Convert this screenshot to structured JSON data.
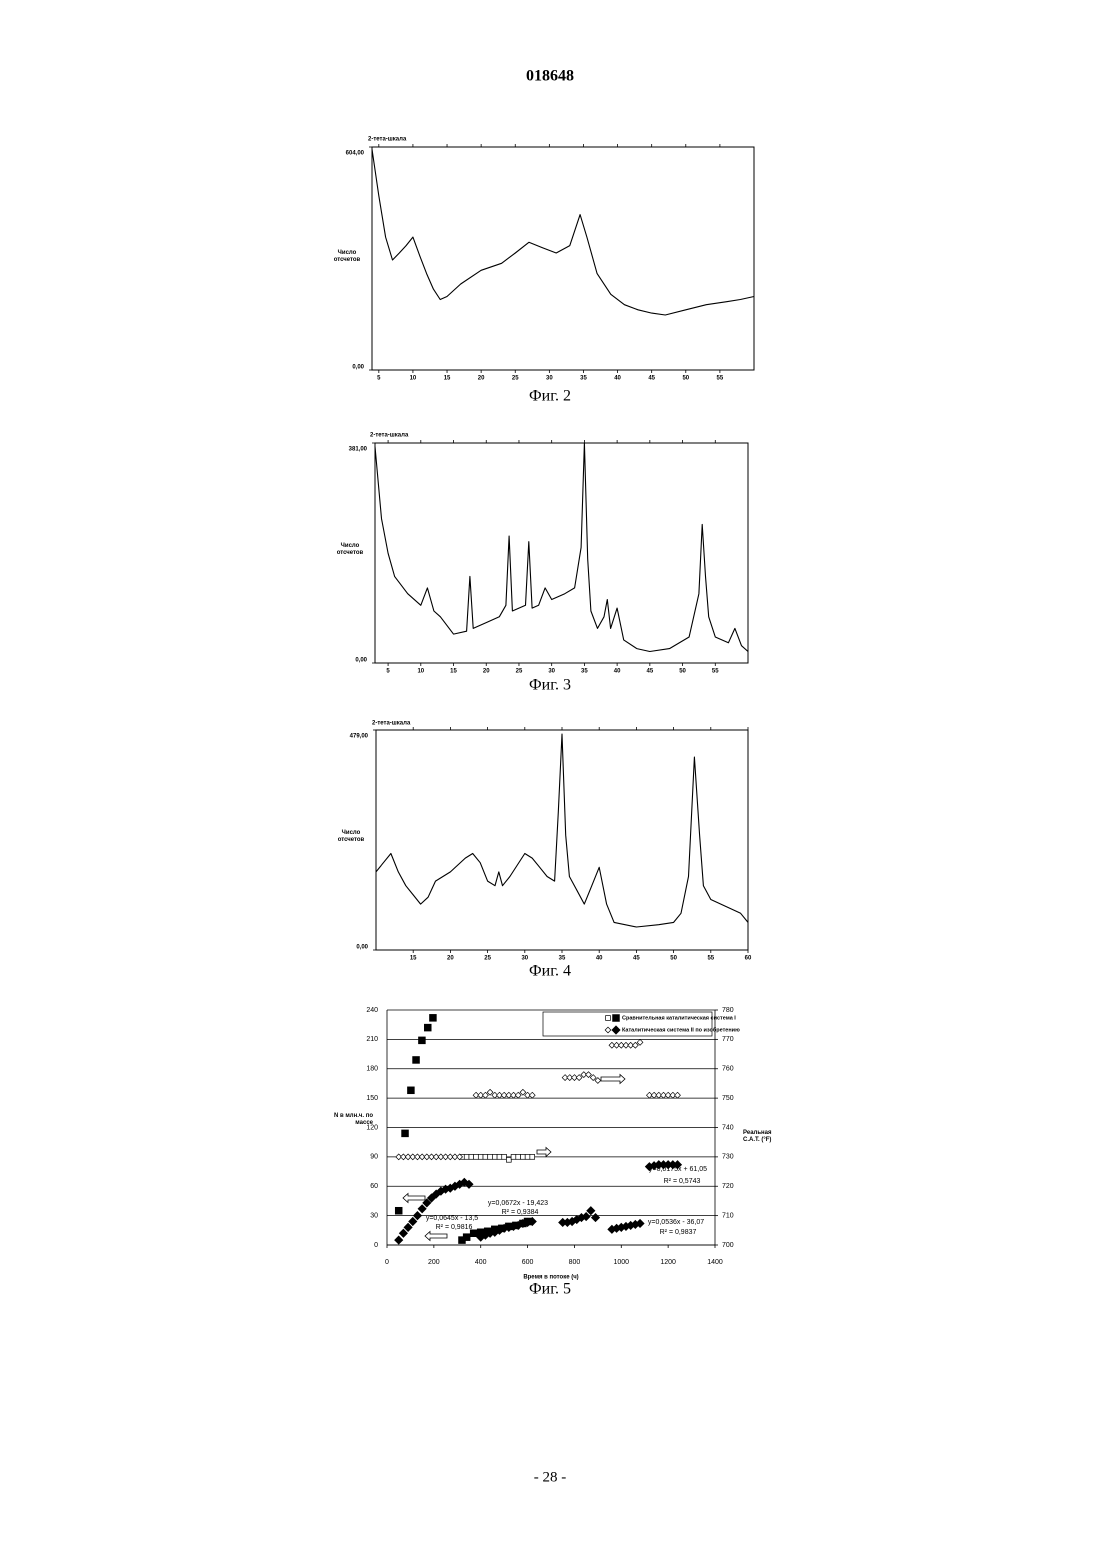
{
  "header": "018648",
  "page_number": "- 28 -",
  "chart_data": [
    {
      "type": "line",
      "title": "2-тета-шкала",
      "y_label": "Число отсчетов",
      "caption": "Фиг. 2",
      "color": "#000000",
      "xlim": [
        4,
        60
      ],
      "xticks": [
        5,
        10,
        15,
        20,
        25,
        30,
        35,
        40,
        45,
        50,
        55
      ],
      "ylim": [
        0,
        604
      ],
      "yticks": [
        {
          "value": 0,
          "label": "0,00"
        },
        {
          "value": 604,
          "label": "604,00"
        }
      ],
      "x": [
        4,
        5,
        6,
        7,
        8,
        9,
        10,
        11,
        12,
        13,
        14,
        15,
        17,
        20,
        23,
        25,
        27,
        29,
        31,
        33,
        34.5,
        35.5,
        37,
        39,
        41,
        43,
        45,
        47,
        50,
        53,
        56,
        58,
        60
      ],
      "values": [
        598,
        472,
        360,
        298,
        317,
        337,
        360,
        309,
        261,
        219,
        191,
        199,
        233,
        270,
        289,
        317,
        346,
        331,
        317,
        337,
        421,
        360,
        261,
        205,
        177,
        163,
        154,
        149,
        163,
        177,
        185,
        191,
        199
      ]
    },
    {
      "type": "line",
      "title": "2-тета-шкала",
      "y_label": "Число отсчетов",
      "caption": "Фиг. 3",
      "color": "#000000",
      "xlim": [
        3,
        60
      ],
      "xticks": [
        5,
        10,
        15,
        20,
        25,
        30,
        35,
        40,
        45,
        50,
        55
      ],
      "ylim": [
        0,
        381
      ],
      "yticks": [
        {
          "value": 0,
          "label": "0,00"
        },
        {
          "value": 381,
          "label": "381,00"
        }
      ],
      "x": [
        3,
        4,
        5,
        6,
        8,
        10,
        11,
        12,
        13,
        15,
        17,
        17.5,
        18,
        20,
        22,
        23,
        23.5,
        24,
        26,
        26.5,
        27,
        28,
        29,
        30,
        32,
        33.5,
        34.5,
        35,
        35.5,
        36,
        37,
        38,
        38.5,
        39,
        40,
        41,
        43,
        45,
        48,
        51,
        52.5,
        53,
        53.5,
        54,
        55,
        57,
        58,
        59,
        60
      ],
      "values": [
        375,
        250,
        190,
        150,
        120,
        100,
        130,
        90,
        80,
        50,
        55,
        150,
        60,
        70,
        80,
        100,
        220,
        90,
        100,
        210,
        95,
        100,
        130,
        110,
        120,
        130,
        200,
        381,
        180,
        90,
        60,
        80,
        110,
        60,
        95,
        40,
        25,
        20,
        25,
        45,
        120,
        240,
        150,
        80,
        45,
        35,
        60,
        30,
        20
      ]
    },
    {
      "type": "line",
      "title": "2-тета-шкала",
      "y_label": "Число отсчетов",
      "caption": "Фиг. 4",
      "color": "#000000",
      "xlim": [
        10,
        60
      ],
      "xticks": [
        15,
        20,
        25,
        30,
        35,
        40,
        45,
        50,
        55,
        60
      ],
      "ylim": [
        0,
        479
      ],
      "yticks": [
        {
          "value": 0,
          "label": "0,00"
        },
        {
          "value": 479,
          "label": "479,00"
        }
      ],
      "x": [
        10,
        11,
        12,
        13,
        14,
        15,
        16,
        17,
        18,
        20,
        22,
        23,
        24,
        25,
        26,
        26.5,
        27,
        28,
        30,
        31,
        32,
        33,
        34,
        34.5,
        35,
        35.5,
        36,
        37,
        38,
        39,
        40,
        41,
        42,
        45,
        48,
        50,
        51,
        52,
        52.8,
        53.5,
        54,
        55,
        57,
        59,
        60
      ],
      "values": [
        170,
        190,
        210,
        170,
        140,
        120,
        100,
        115,
        150,
        170,
        200,
        210,
        190,
        150,
        140,
        170,
        140,
        160,
        210,
        200,
        180,
        160,
        150,
        300,
        470,
        250,
        160,
        130,
        100,
        140,
        180,
        100,
        60,
        50,
        55,
        60,
        80,
        160,
        420,
        250,
        140,
        110,
        95,
        80,
        60
      ]
    },
    {
      "type": "scatter",
      "caption": "Фиг. 5",
      "x_label": "Время в потоке (ч)",
      "y_label": "N в млн.ч. по массе",
      "y2_label": "Реальная C.A.T. (°F)",
      "grid": true,
      "xlim": [
        0,
        1400
      ],
      "xticks": [
        0,
        200,
        400,
        600,
        800,
        1000,
        1200,
        1400
      ],
      "ylim": [
        0,
        240
      ],
      "yticks": [
        0,
        30,
        60,
        90,
        120,
        150,
        180,
        210,
        240
      ],
      "y2lim": [
        700,
        780
      ],
      "y2ticks": [
        700,
        710,
        720,
        730,
        740,
        750,
        760,
        770,
        780
      ],
      "annotations": [
        "y=0,0175x + 61,05",
        "R² = 0,5743",
        "y=0,0672x - 19,423",
        "R² = 0,9384",
        "y=0,0645x - 13,5",
        "R² = 0,9816",
        "y=0,0536x - 36,07",
        "R² = 0,9837"
      ],
      "series": [
        {
          "name": "Сравнительная каталитическая система I",
          "marker": "square",
          "filled": true,
          "color": "#000000",
          "x": [
            50,
            77,
            102,
            124,
            149,
            174,
            196,
            320,
            340,
            370,
            400,
            430,
            460,
            490,
            520,
            550,
            580,
            600
          ],
          "values": [
            35,
            114,
            158,
            189,
            209,
            222,
            232,
            5,
            8,
            12,
            13,
            14,
            16,
            17,
            19,
            20,
            22,
            24
          ]
        },
        {
          "marker": "square",
          "filled": false,
          "axis": "y2",
          "color": "#000000",
          "x": [
            320,
            340,
            360,
            380,
            400,
            420,
            440,
            460,
            480,
            500,
            520,
            540,
            560,
            580,
            600,
            620
          ],
          "values": [
            730,
            730,
            730,
            730,
            730,
            730,
            730,
            730,
            730,
            730,
            729,
            730,
            730,
            730,
            730,
            730
          ]
        },
        {
          "name": "Каталитическая система II по изобретению",
          "marker": "diamond",
          "filled": true,
          "color": "#000000",
          "x": [
            50,
            70,
            90,
            110,
            130,
            150,
            170,
            190,
            210,
            230,
            250,
            270,
            290,
            310,
            330,
            350,
            400,
            420,
            440,
            460,
            480,
            500,
            520,
            540,
            560,
            580,
            600,
            620,
            750,
            770,
            790,
            810,
            830,
            850,
            870,
            890,
            960,
            980,
            1000,
            1020,
            1040,
            1060,
            1080,
            1120,
            1140,
            1160,
            1180,
            1200,
            1220,
            1240
          ],
          "values": [
            5,
            12,
            18,
            24,
            30,
            37,
            43,
            48,
            52,
            55,
            57,
            58,
            60,
            62,
            64,
            62,
            8,
            10,
            12,
            13,
            15,
            17,
            18,
            19,
            20,
            22,
            23,
            24,
            23,
            23,
            24,
            26,
            28,
            29,
            35,
            28,
            16,
            17,
            18,
            19,
            20,
            21,
            22,
            80,
            81,
            82,
            82,
            82,
            82,
            82
          ]
        },
        {
          "marker": "diamond",
          "filled": false,
          "axis": "y2",
          "color": "#000000",
          "x": [
            50,
            70,
            90,
            110,
            130,
            150,
            170,
            190,
            210,
            230,
            250,
            270,
            290,
            310,
            380,
            400,
            420,
            440,
            460,
            480,
            500,
            520,
            540,
            560,
            580,
            600,
            620,
            760,
            780,
            800,
            820,
            840,
            860,
            880,
            900,
            960,
            980,
            1000,
            1020,
            1040,
            1060,
            1080,
            1120,
            1140,
            1160,
            1180,
            1200,
            1220,
            1240
          ],
          "values": [
            730,
            730,
            730,
            730,
            730,
            730,
            730,
            730,
            730,
            730,
            730,
            730,
            730,
            730,
            751,
            751,
            751,
            752,
            751,
            751,
            751,
            751,
            751,
            751,
            752,
            751,
            751,
            757,
            757,
            757,
            757,
            758,
            758,
            757,
            756,
            768,
            768,
            768,
            768,
            768,
            768,
            769,
            751,
            751,
            751,
            751,
            751,
            751,
            751
          ]
        }
      ]
    }
  ]
}
